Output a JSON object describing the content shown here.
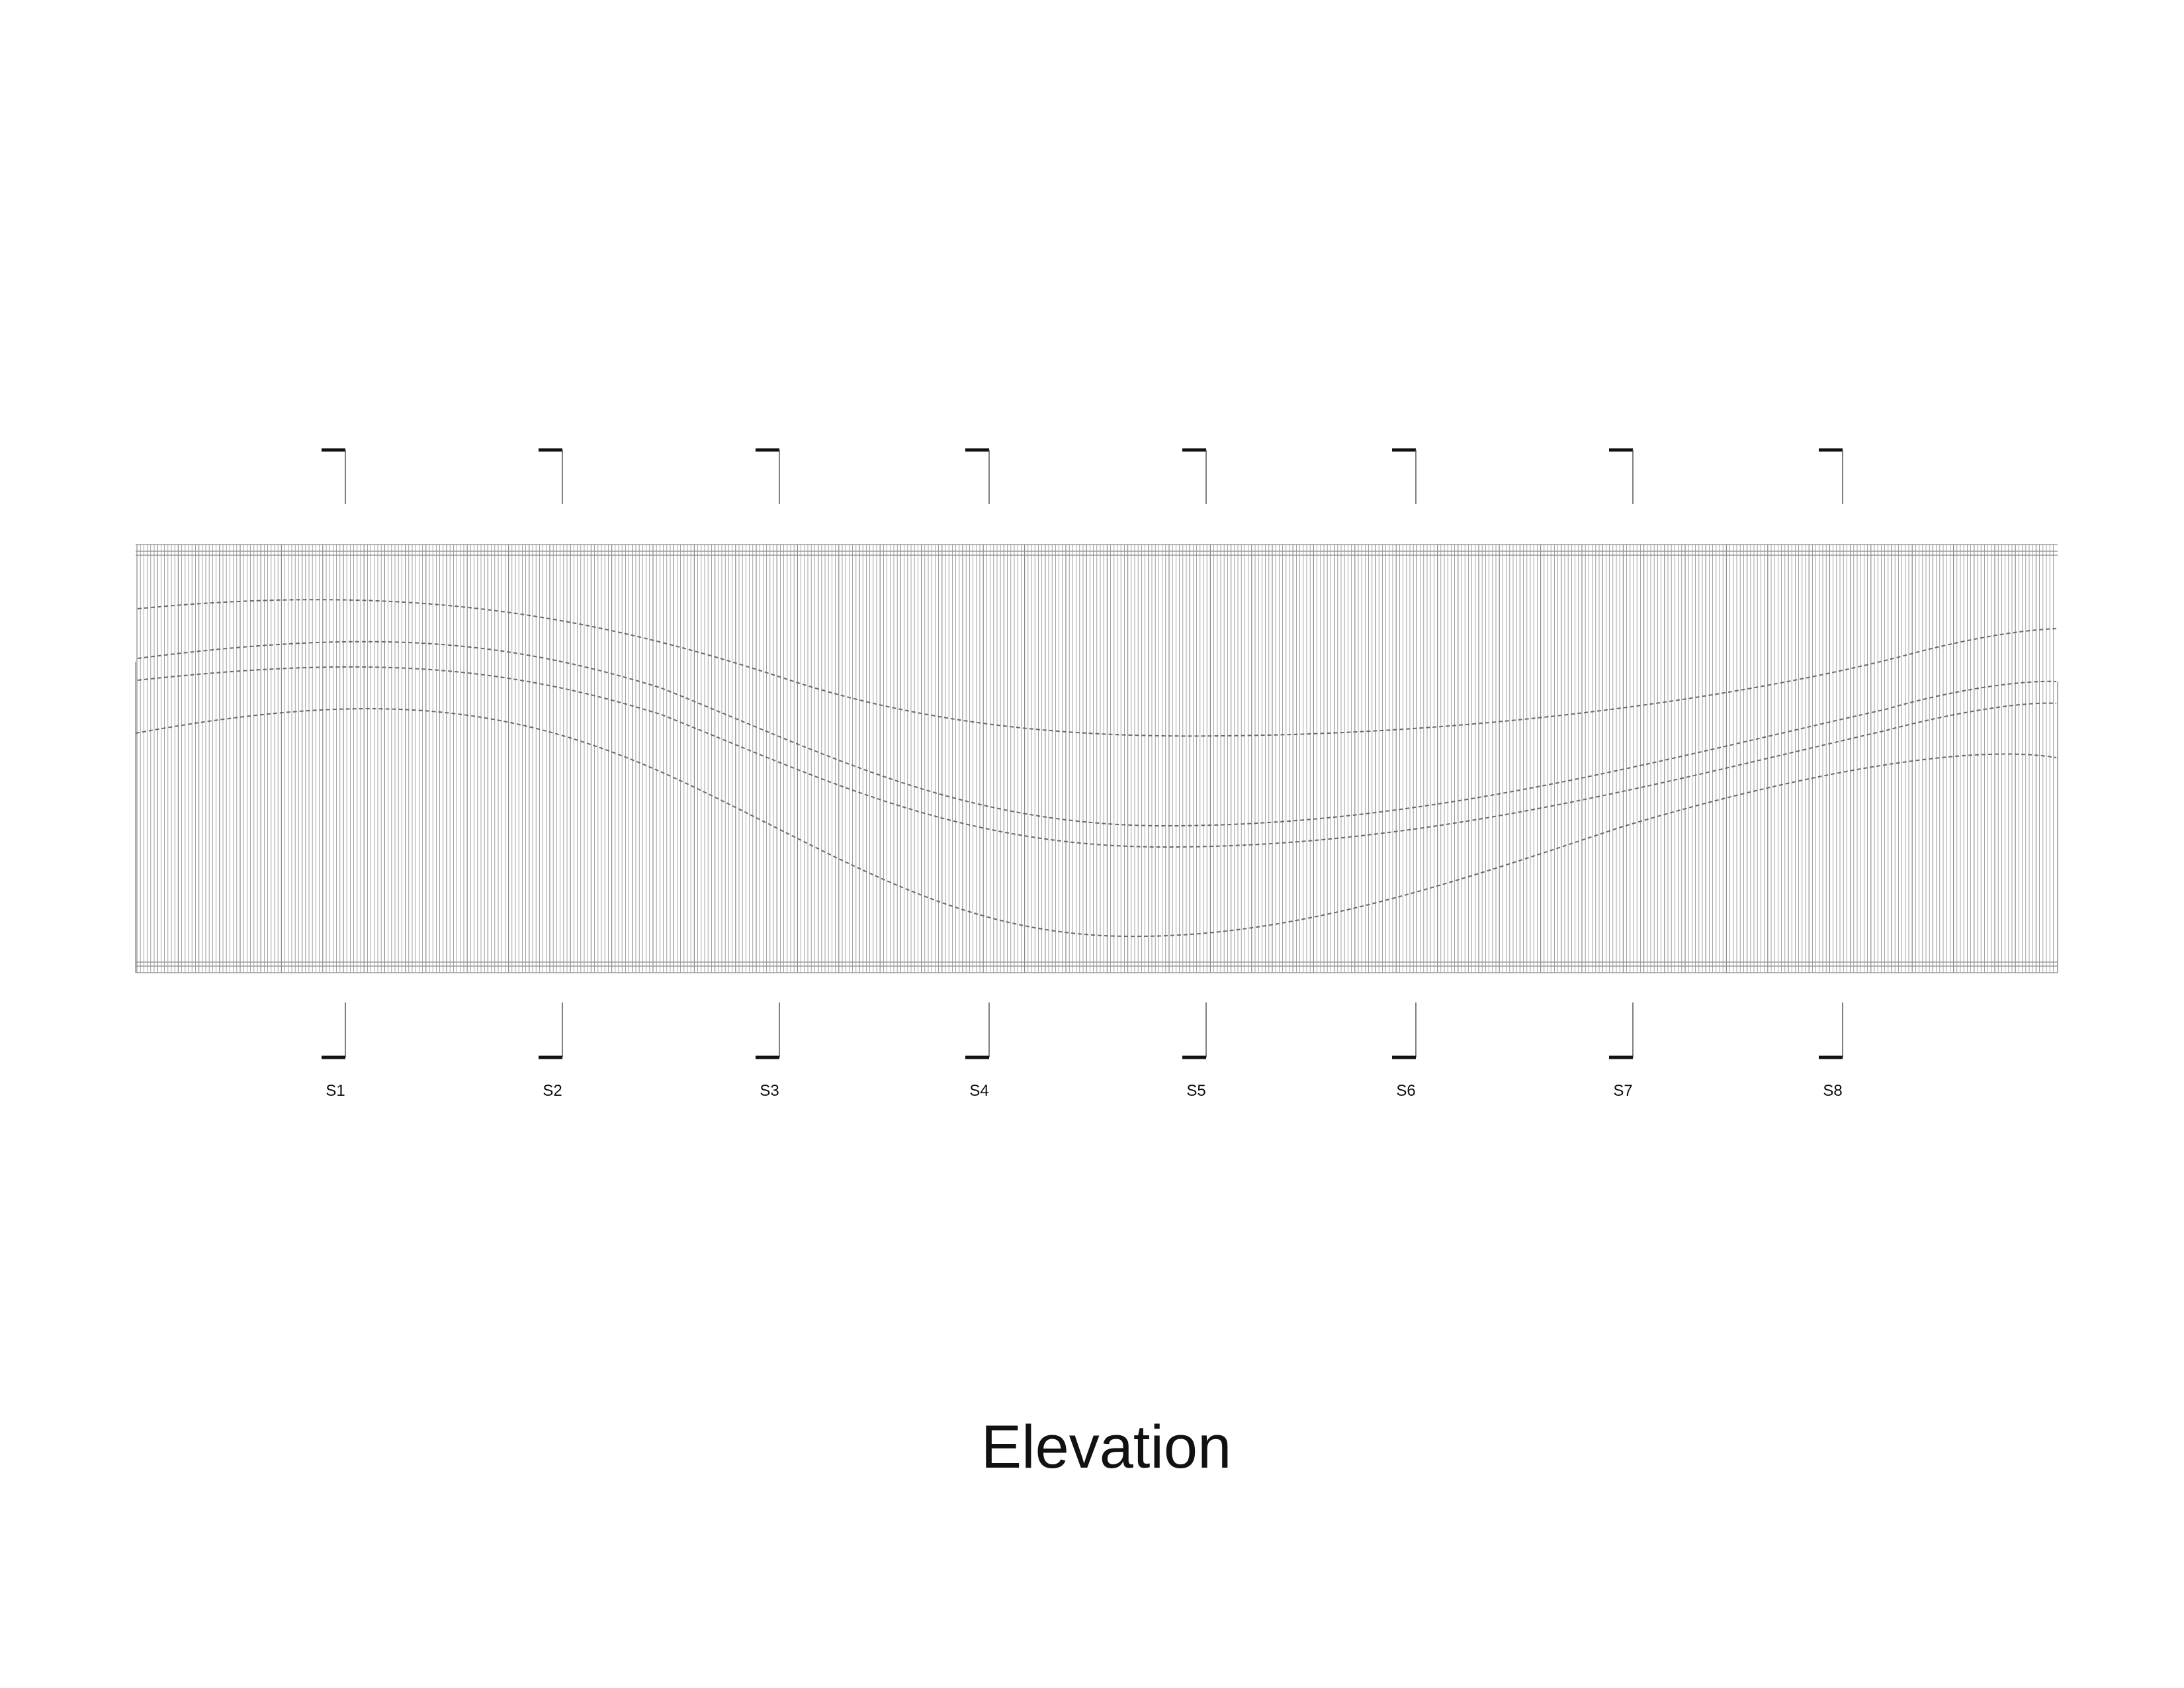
{
  "drawing": {
    "title": "Elevation",
    "sections": [
      {
        "id": "s1",
        "label": "S1"
      },
      {
        "id": "s2",
        "label": "S2"
      },
      {
        "id": "s3",
        "label": "S3"
      },
      {
        "id": "s4",
        "label": "S4"
      },
      {
        "id": "s5",
        "label": "S5"
      },
      {
        "id": "s6",
        "label": "S6"
      },
      {
        "id": "s7",
        "label": "S7"
      },
      {
        "id": "s8",
        "label": "S8"
      }
    ],
    "colors": {
      "background": "#ffffff",
      "fins": "#8a8a8a",
      "hidden_lines": "#6a6a6a",
      "section_marks": "#111111",
      "text": "#111111"
    }
  }
}
